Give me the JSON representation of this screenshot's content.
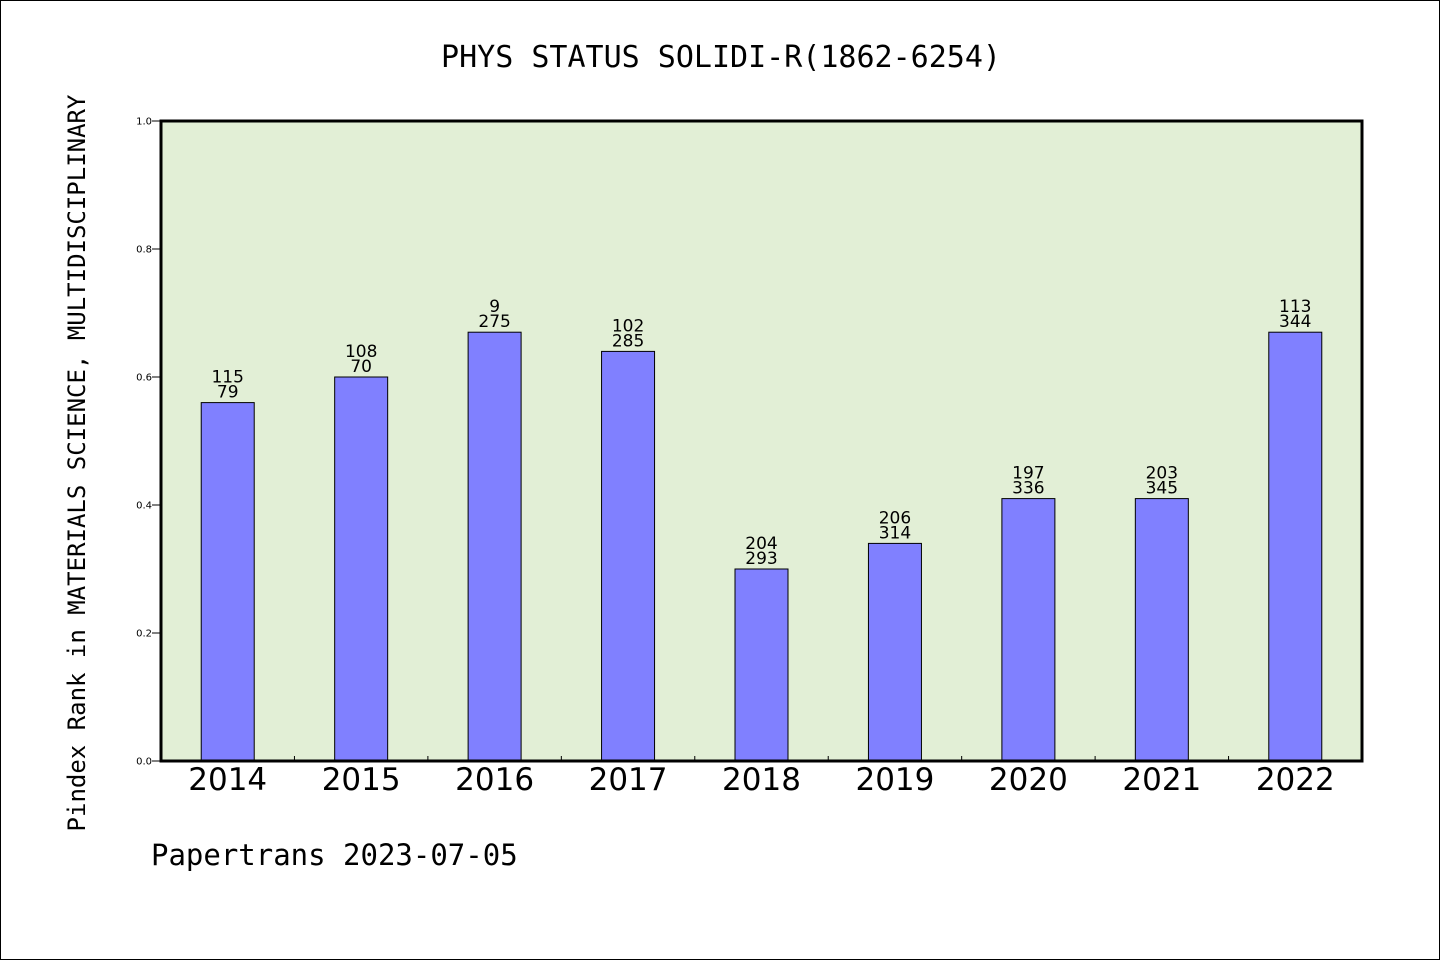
{
  "chart_data": {
    "type": "bar",
    "title": "PHYS STATUS SOLIDI-R(1862-6254)",
    "ylabel": "Pindex Rank in MATERIALS SCIENCE, MULTIDISCIPLINARY",
    "xlabel": "",
    "ylim": [
      0,
      1.0
    ],
    "yticks": [
      "0.0",
      "0.2",
      "0.4",
      "0.6",
      "0.8",
      "1.0"
    ],
    "categories": [
      "2014",
      "2015",
      "2016",
      "2017",
      "2018",
      "2019",
      "2020",
      "2021",
      "2022"
    ],
    "values": [
      0.56,
      0.6,
      0.67,
      0.64,
      0.3,
      0.34,
      0.41,
      0.41,
      0.67
    ],
    "label_top": [
      "115",
      "108",
      "9",
      "102",
      "204",
      "206",
      "197",
      "203",
      "113"
    ],
    "label_bottom": [
      "79",
      "70",
      "275",
      "285",
      "293",
      "314",
      "336",
      "345",
      "344"
    ],
    "grid": false,
    "legend": "none",
    "colors": {
      "bar": "#8080ff",
      "plot_background": "#e2efd6",
      "axis": "#000000"
    }
  },
  "footer": "Papertrans 2023-07-05"
}
